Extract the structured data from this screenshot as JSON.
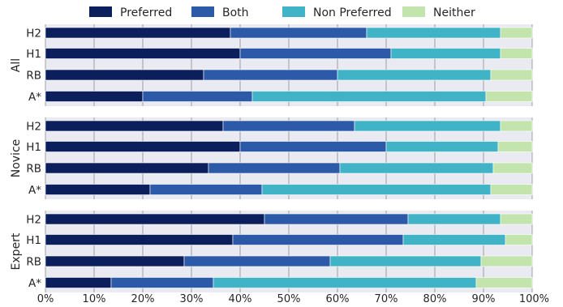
{
  "chart_data": {
    "type": "bar",
    "orientation": "horizontal",
    "stacked": true,
    "normalized": true,
    "legend": {
      "placement": "top",
      "entries": [
        "Preferred",
        "Both",
        "Non Preferred",
        "Neither"
      ]
    },
    "colors": {
      "Preferred": "#0b1f5c",
      "Both": "#2c5aa8",
      "Non Preferred": "#41b3c6",
      "Neither": "#c3e5ad",
      "panel_background": "#eaeaf2",
      "gridline": "#8a8a8a"
    },
    "x_axis": {
      "range": [
        0,
        100
      ],
      "ticks": [
        "0%",
        "10%",
        "20%",
        "30%",
        "40%",
        "50%",
        "60%",
        "70%",
        "80%",
        "90%",
        "100%"
      ]
    },
    "grid": true,
    "categories": [
      "H2",
      "H1",
      "RB",
      "A*"
    ],
    "groups": [
      {
        "name": "All",
        "bars": [
          {
            "label": "H2",
            "values": [
              38,
              28,
              27.5,
              6.5
            ]
          },
          {
            "label": "H1",
            "values": [
              40,
              31,
              22.5,
              6.5
            ]
          },
          {
            "label": "RB",
            "values": [
              32.5,
              27.5,
              31.5,
              8.5
            ]
          },
          {
            "label": "A*",
            "values": [
              20,
              22.5,
              48,
              9.5
            ]
          }
        ]
      },
      {
        "name": "Novice",
        "bars": [
          {
            "label": "H2",
            "values": [
              36.5,
              27,
              30,
              6.5
            ]
          },
          {
            "label": "H1",
            "values": [
              40,
              30,
              23,
              7
            ]
          },
          {
            "label": "RB",
            "values": [
              33.5,
              27,
              31.5,
              8
            ]
          },
          {
            "label": "A*",
            "values": [
              21.5,
              23,
              47,
              8.5
            ]
          }
        ]
      },
      {
        "name": "Expert",
        "bars": [
          {
            "label": "H2",
            "values": [
              45,
              29.5,
              19,
              6.5
            ]
          },
          {
            "label": "H1",
            "values": [
              38.5,
              35,
              21,
              5.5
            ]
          },
          {
            "label": "RB",
            "values": [
              28.5,
              30,
              31,
              10.5
            ]
          },
          {
            "label": "A*",
            "values": [
              13.5,
              21,
              54,
              11.5
            ]
          }
        ]
      }
    ]
  }
}
